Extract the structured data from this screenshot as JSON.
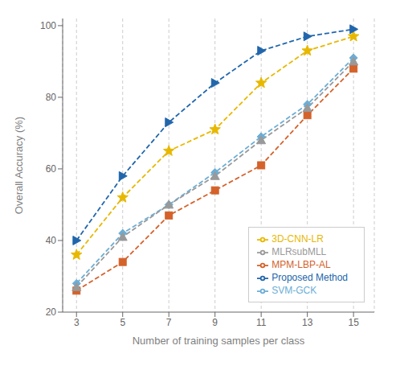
{
  "chart_data": {
    "type": "line",
    "x": [
      3,
      5,
      7,
      9,
      11,
      13,
      15
    ],
    "series": [
      {
        "name": "SVM-GCK",
        "color": "#6BAED6",
        "marker": "diamond",
        "line_style": "dashed",
        "values": [
          28,
          42,
          50,
          59,
          69,
          78,
          91
        ]
      },
      {
        "name": "MPM-LBP-AL",
        "color": "#D4622A",
        "marker": "square",
        "line_style": "dashed",
        "values": [
          26,
          34,
          47,
          54,
          61,
          75,
          88
        ]
      },
      {
        "name": "MLRsubMLL",
        "color": "#999999",
        "marker": "triangle",
        "line_style": "dashed",
        "values": [
          27,
          41,
          50,
          58,
          68,
          77,
          90
        ]
      },
      {
        "name": "3D-CNN-LR",
        "color": "#E8B800",
        "marker": "star",
        "line_style": "dashed",
        "values": [
          36,
          52,
          65,
          71,
          84,
          93,
          97
        ]
      },
      {
        "name": "Proposed Method",
        "color": "#2166AC",
        "marker": "triangle-right",
        "line_style": "dashed",
        "values": [
          40,
          58,
          73,
          84,
          93,
          97,
          99
        ]
      }
    ],
    "xlabel": "Number of training samples per class",
    "ylabel": "Overall Accuracy (%)",
    "xlim": [
      2.4,
      15.9
    ],
    "ylim": [
      20,
      102
    ],
    "xticks": [
      3,
      5,
      7,
      9,
      11,
      13,
      15
    ],
    "yticks": [
      20,
      40,
      60,
      80,
      100
    ],
    "grid": "x",
    "legend": "lower right"
  }
}
